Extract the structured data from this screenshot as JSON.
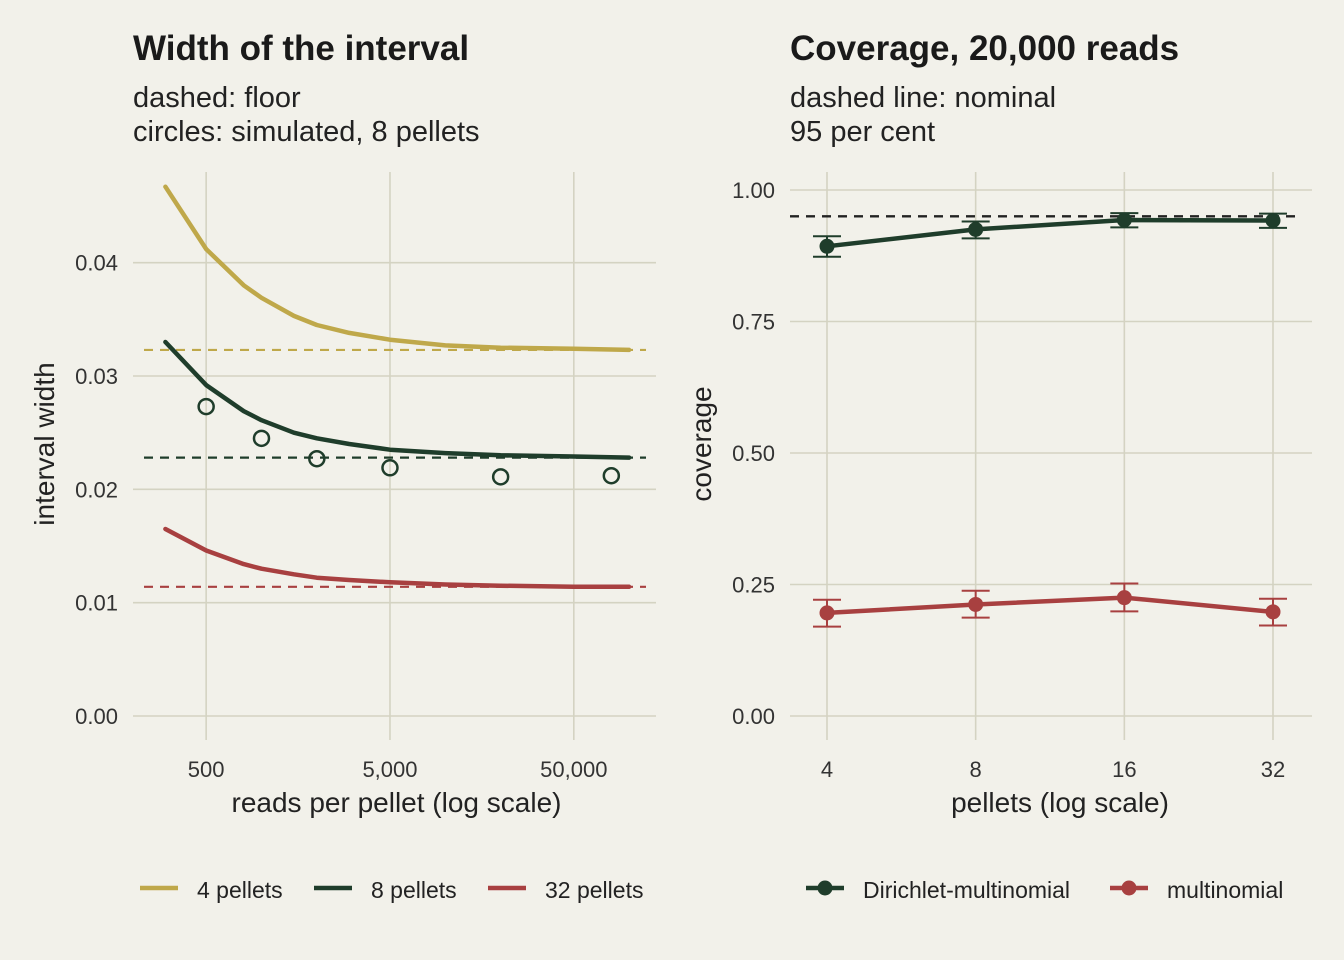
{
  "chart_data": [
    {
      "type": "line",
      "title": "Width of the interval",
      "subtitle_lines": [
        "dashed: floor",
        "circles: simulated, 8 pellets"
      ],
      "xlabel": "reads per pellet (log scale)",
      "ylabel": "interval width",
      "x_scale": "log",
      "xlim": [
        200,
        140000
      ],
      "ylim": [
        0,
        0.048
      ],
      "x_ticks": [
        500,
        5000,
        50000
      ],
      "x_tick_labels": [
        "500",
        "5,000",
        "50,000"
      ],
      "y_ticks": [
        0,
        0.01,
        0.02,
        0.03,
        0.04
      ],
      "y_tick_labels": [
        "0.00",
        "0.01",
        "0.02",
        "0.03",
        "0.04"
      ],
      "grid": true,
      "legend_position": "bottom",
      "series": [
        {
          "name": "4 pellets",
          "color": "#bfa84a",
          "x": [
            300,
            500,
            800,
            1000,
            1500,
            2000,
            3000,
            5000,
            10000,
            20000,
            50000,
            100000
          ],
          "y": [
            0.0467,
            0.0412,
            0.038,
            0.0369,
            0.0353,
            0.0345,
            0.0338,
            0.0332,
            0.0327,
            0.0325,
            0.0324,
            0.0323
          ],
          "floor": 0.0323
        },
        {
          "name": "8 pellets",
          "color": "#1f3d2b",
          "x": [
            300,
            500,
            800,
            1000,
            1500,
            2000,
            3000,
            5000,
            10000,
            20000,
            50000,
            100000
          ],
          "y": [
            0.033,
            0.0292,
            0.0269,
            0.0261,
            0.025,
            0.0245,
            0.024,
            0.0235,
            0.0232,
            0.023,
            0.0229,
            0.0228
          ],
          "floor": 0.0228,
          "simulated_x": [
            500,
            1000,
            2000,
            5000,
            20000,
            80000
          ],
          "simulated_y": [
            0.0273,
            0.0245,
            0.0227,
            0.0219,
            0.0211,
            0.0212
          ]
        },
        {
          "name": "32 pellets",
          "color": "#a84040",
          "x": [
            300,
            500,
            800,
            1000,
            1500,
            2000,
            3000,
            5000,
            10000,
            20000,
            50000,
            100000
          ],
          "y": [
            0.0165,
            0.0146,
            0.0134,
            0.013,
            0.0125,
            0.0122,
            0.012,
            0.0118,
            0.0116,
            0.0115,
            0.0114,
            0.0114
          ],
          "floor": 0.0114
        }
      ]
    },
    {
      "type": "line",
      "title": "Coverage, 20,000 reads",
      "subtitle_lines": [
        "dashed line: nominal",
        "95 per cent"
      ],
      "xlabel": "pellets (log scale)",
      "ylabel": "coverage",
      "x_scale": "log",
      "xlim": [
        3.2,
        40
      ],
      "ylim": [
        0,
        1.05
      ],
      "x_ticks": [
        4,
        8,
        16,
        32
      ],
      "x_tick_labels": [
        "4",
        "8",
        "16",
        "32"
      ],
      "y_ticks": [
        0,
        0.25,
        0.5,
        0.75,
        1.0
      ],
      "y_tick_labels": [
        "0.00",
        "0.25",
        "0.50",
        "0.75",
        "1.00"
      ],
      "grid": true,
      "legend_position": "bottom",
      "nominal": 0.95,
      "series": [
        {
          "name": "Dirichlet-multinomial",
          "color": "#1f3d2b",
          "x": [
            4,
            8,
            16,
            32
          ],
          "y": [
            0.893,
            0.925,
            0.943,
            0.942
          ],
          "lower": [
            0.873,
            0.908,
            0.929,
            0.928
          ],
          "upper": [
            0.912,
            0.94,
            0.956,
            0.955
          ]
        },
        {
          "name": "multinomial",
          "color": "#a84040",
          "x": [
            4,
            8,
            16,
            32
          ],
          "y": [
            0.196,
            0.212,
            0.225,
            0.198
          ],
          "lower": [
            0.17,
            0.187,
            0.199,
            0.172
          ],
          "upper": [
            0.221,
            0.238,
            0.252,
            0.223
          ]
        }
      ]
    }
  ]
}
